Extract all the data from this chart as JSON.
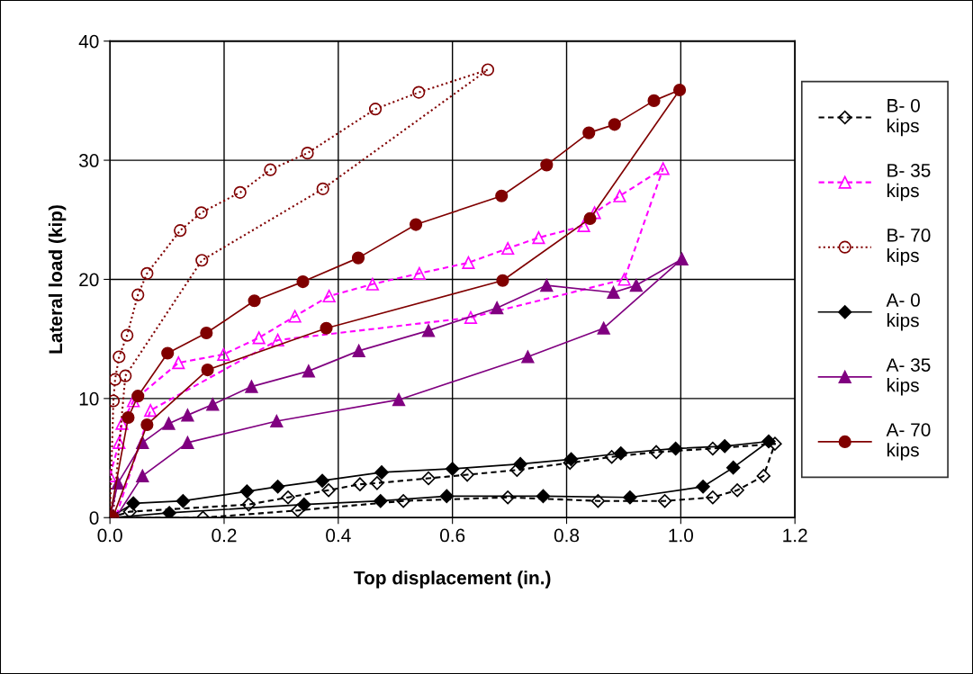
{
  "chart_data": {
    "type": "line",
    "xlabel": "Top displacement (in.)",
    "ylabel": "Lateral load (kip)",
    "xlim": [
      0,
      1.2
    ],
    "ylim": [
      0,
      40
    ],
    "xticks": [
      {
        "value": 0,
        "label": "0.0"
      },
      {
        "value": 0.2,
        "label": "0.2"
      },
      {
        "value": 0.4,
        "label": "0.4"
      },
      {
        "value": 0.6,
        "label": "0.6"
      },
      {
        "value": 0.8,
        "label": "0.8"
      },
      {
        "value": 1.0,
        "label": "1.0"
      },
      {
        "value": 1.2,
        "label": "1.2"
      }
    ],
    "yticks": [
      0,
      10,
      20,
      30,
      40
    ],
    "grid": true,
    "legend": "right",
    "series": [
      {
        "name": "B- 0\nkips",
        "color": "#000000",
        "marker": "diamond",
        "line_style": "dashed",
        "x": [
          0.0,
          0.035,
          0.243,
          0.312,
          0.383,
          0.438,
          0.468,
          0.558,
          0.626,
          0.713,
          0.806,
          0.879,
          0.957,
          1.056,
          1.165,
          1.145,
          1.099,
          1.056,
          0.972,
          0.855,
          0.697,
          0.514,
          0.329,
          0.163,
          0.005
        ],
        "values": [
          0.0,
          0.5,
          1.1,
          1.7,
          2.3,
          2.8,
          2.9,
          3.3,
          3.6,
          4.0,
          4.6,
          5.1,
          5.5,
          5.8,
          6.2,
          3.5,
          2.3,
          1.7,
          1.4,
          1.4,
          1.7,
          1.4,
          0.6,
          0.0,
          0.0
        ]
      },
      {
        "name": "B- 35\nkips",
        "color": "#ff00ff",
        "marker": "triangle",
        "line_style": "dashed",
        "x": [
          0.0,
          0.016,
          0.021,
          0.041,
          0.12,
          0.199,
          0.261,
          0.324,
          0.384,
          0.46,
          0.542,
          0.628,
          0.697,
          0.751,
          0.83,
          0.849,
          0.893,
          0.969,
          0.901,
          0.632,
          0.294,
          0.071,
          0.01
        ],
        "values": [
          3.5,
          6.3,
          7.9,
          9.8,
          13.0,
          13.7,
          15.1,
          16.9,
          18.6,
          19.6,
          20.5,
          21.4,
          22.6,
          23.5,
          24.5,
          25.6,
          27.0,
          29.3,
          20.0,
          16.8,
          14.9,
          9.0,
          0.0
        ]
      },
      {
        "name": "B- 70\nkips",
        "color": "#800000",
        "marker": "circle",
        "line_style": "dotted",
        "x": [
          0.0,
          0.006,
          0.009,
          0.016,
          0.03,
          0.049,
          0.065,
          0.123,
          0.16,
          0.228,
          0.281,
          0.346,
          0.465,
          0.541,
          0.662,
          0.373,
          0.161,
          0.027,
          0.005
        ],
        "values": [
          0.0,
          9.8,
          11.6,
          13.5,
          15.3,
          18.7,
          20.5,
          24.1,
          25.6,
          27.3,
          29.2,
          30.6,
          34.3,
          35.7,
          37.6,
          27.6,
          21.6,
          11.9,
          0.0
        ]
      },
      {
        "name": "A- 0\nkips",
        "color": "#000000",
        "marker": "diamond",
        "line_style": "solid",
        "x": [
          0.0,
          0.041,
          0.128,
          0.24,
          0.294,
          0.372,
          0.476,
          0.6,
          0.719,
          0.808,
          0.895,
          0.991,
          1.077,
          1.154,
          1.092,
          1.039,
          0.911,
          0.759,
          0.59,
          0.474,
          0.34,
          0.104,
          0.005
        ],
        "values": [
          0.0,
          1.2,
          1.4,
          2.2,
          2.6,
          3.1,
          3.8,
          4.1,
          4.5,
          4.9,
          5.4,
          5.8,
          6.0,
          6.4,
          4.2,
          2.6,
          1.7,
          1.8,
          1.8,
          1.4,
          1.1,
          0.4,
          0.0
        ]
      },
      {
        "name": "A- 35\nkips",
        "color": "#800080",
        "marker": "triangle",
        "line_style": "solid",
        "x": [
          0.0,
          0.014,
          0.057,
          0.103,
          0.136,
          0.18,
          0.248,
          0.348,
          0.436,
          0.558,
          0.678,
          0.765,
          0.882,
          0.922,
          1.002,
          0.865,
          0.732,
          0.506,
          0.292,
          0.136,
          0.057,
          0.01
        ],
        "values": [
          0.0,
          2.9,
          6.3,
          7.9,
          8.6,
          9.5,
          11.0,
          12.3,
          14.0,
          15.7,
          17.6,
          19.5,
          18.9,
          19.5,
          21.7,
          15.9,
          13.5,
          9.9,
          8.1,
          6.3,
          3.5,
          0.0
        ]
      },
      {
        "name": "A- 70\nkips",
        "color": "#800000",
        "marker": "circle",
        "line_style": "solid",
        "x": [
          0.0,
          0.032,
          0.049,
          0.101,
          0.169,
          0.253,
          0.338,
          0.435,
          0.536,
          0.686,
          0.765,
          0.839,
          0.884,
          0.953,
          0.998,
          0.841,
          0.688,
          0.379,
          0.171,
          0.065,
          0.005
        ],
        "values": [
          0.1,
          8.4,
          10.2,
          13.8,
          15.5,
          18.2,
          19.8,
          21.8,
          24.6,
          27.0,
          29.6,
          32.3,
          33.0,
          35.0,
          35.9,
          25.1,
          19.9,
          15.9,
          12.4,
          7.8,
          0.0
        ]
      }
    ]
  }
}
